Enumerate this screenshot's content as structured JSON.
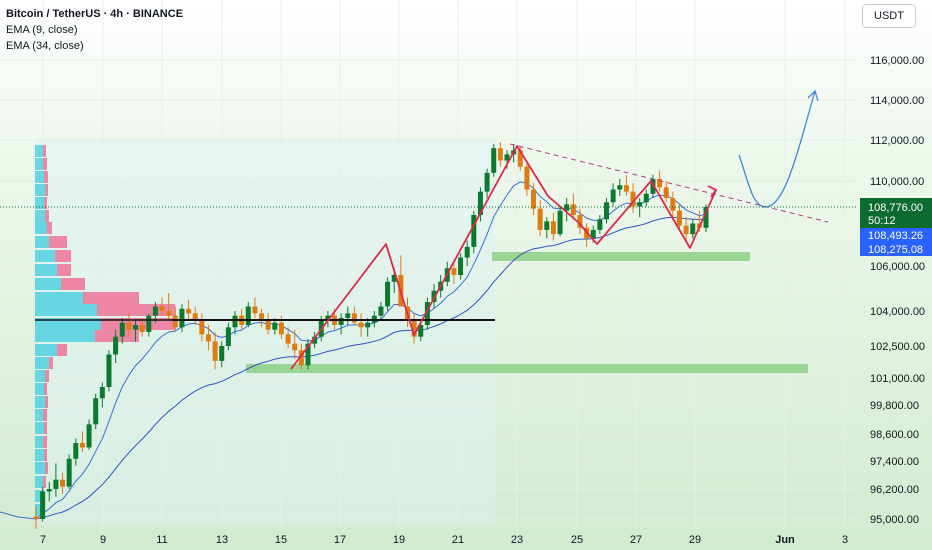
{
  "legend": {
    "title": "Bitcoin / TetherUS · 4h · BINANCE",
    "ema_fast": "EMA (9, close)",
    "ema_slow": "EMA (34, close)"
  },
  "currency": "USDT",
  "price_tags": {
    "last_price": "108,776.00",
    "countdown": "50:12",
    "ema_fast_value": "108,493.26",
    "ema_slow_value": "108,275.08"
  },
  "colors": {
    "background_top": "#ffffff",
    "background_bottom": "#d1ebd0",
    "candle_up": "#0c7a2e",
    "candle_down": "#e07b12",
    "ema_fast": "#3a6fd8",
    "ema_slow": "#2f55c8",
    "pattern": "#e0284a",
    "zone": "#8ccf86",
    "projection": "#3d86d6",
    "last_price_tag": "#0c6b2e",
    "ema_tag": "#2962ff",
    "volume_profile_up": "#4fd1e0",
    "volume_profile_down": "#f06a92"
  },
  "chart_data": {
    "type": "candlestick",
    "symbol": "BTC/USDT",
    "interval": "4h",
    "y_axis_labels": [
      "116,000.00",
      "114,000.00",
      "112,000.00",
      "110,000.00",
      "106,000.00",
      "104,000.00",
      "102,500.00",
      "101,000.00",
      "99,800.00",
      "98,600.00",
      "97,400.00",
      "96,200.00",
      "95,000.00"
    ],
    "y_axis_values": [
      116000,
      114000,
      112000,
      110000,
      106000,
      104000,
      102500,
      101000,
      99800,
      98600,
      97400,
      96200,
      95000
    ],
    "x_axis_labels": [
      "7",
      "9",
      "11",
      "13",
      "15",
      "17",
      "19",
      "21",
      "23",
      "25",
      "27",
      "29",
      "Jun",
      "3"
    ],
    "last_price": 108776,
    "ema_9": 108493.26,
    "ema_34": 108275.08,
    "support_zones": [
      {
        "from": "May 14",
        "to": "Jun 1",
        "price": 101300
      },
      {
        "from": "May 22",
        "to": "May 30",
        "price": 106300
      }
    ],
    "horizontal_level": 103600,
    "descending_trendline": {
      "from": [
        "May 22",
        111700
      ],
      "to": [
        "Jun 2",
        108000
      ]
    },
    "candles_ohlc_approx": [
      [
        95100,
        95500,
        94600,
        95000
      ],
      [
        95000,
        96300,
        94900,
        96100
      ],
      [
        96100,
        96500,
        95700,
        96200
      ],
      [
        96200,
        97300,
        95900,
        96600
      ],
      [
        96600,
        96900,
        96000,
        96300
      ],
      [
        96300,
        97700,
        96200,
        97500
      ],
      [
        97500,
        98400,
        97200,
        98200
      ],
      [
        98200,
        98700,
        97800,
        98000
      ],
      [
        98000,
        99200,
        97900,
        99000
      ],
      [
        99000,
        100300,
        98800,
        100100
      ],
      [
        100100,
        100800,
        99700,
        100600
      ],
      [
        100600,
        102300,
        100400,
        102100
      ],
      [
        102100,
        103200,
        101700,
        102900
      ],
      [
        102900,
        103700,
        102600,
        103500
      ],
      [
        103500,
        103900,
        102900,
        103200
      ],
      [
        103200,
        103600,
        102700,
        103400
      ],
      [
        103400,
        103700,
        102900,
        103100
      ],
      [
        103100,
        103900,
        102900,
        103800
      ],
      [
        103800,
        104400,
        103500,
        104200
      ],
      [
        104200,
        104600,
        103800,
        104000
      ],
      [
        104000,
        104800,
        103600,
        103800
      ],
      [
        103800,
        104200,
        103100,
        103300
      ],
      [
        103300,
        104300,
        103100,
        104100
      ],
      [
        104100,
        104500,
        103600,
        103900
      ],
      [
        103900,
        104200,
        103400,
        103600
      ],
      [
        103600,
        103900,
        102700,
        103000
      ],
      [
        103000,
        103400,
        102300,
        102700
      ],
      [
        102700,
        103100,
        101400,
        101800
      ],
      [
        101800,
        102700,
        101500,
        102500
      ],
      [
        102500,
        103500,
        102300,
        103300
      ],
      [
        103300,
        104000,
        103000,
        103800
      ],
      [
        103800,
        104100,
        103200,
        103400
      ],
      [
        103400,
        104400,
        103300,
        104200
      ],
      [
        104200,
        104600,
        103700,
        103900
      ],
      [
        103900,
        104100,
        103300,
        103600
      ],
      [
        103600,
        103900,
        103000,
        103200
      ],
      [
        103200,
        103700,
        103000,
        103500
      ],
      [
        103500,
        103800,
        102800,
        103000
      ],
      [
        103000,
        103300,
        102400,
        102600
      ],
      [
        102600,
        103200,
        101900,
        102300
      ],
      [
        102300,
        102600,
        101400,
        101600
      ],
      [
        101600,
        102800,
        101400,
        102600
      ],
      [
        102600,
        103100,
        102400,
        102900
      ],
      [
        102900,
        103800,
        102700,
        103600
      ],
      [
        103600,
        104000,
        103300,
        103800
      ],
      [
        103800,
        104100,
        103200,
        103400
      ],
      [
        103400,
        103900,
        103000,
        103700
      ],
      [
        103700,
        104200,
        103400,
        103900
      ],
      [
        103900,
        104200,
        103400,
        103500
      ],
      [
        103500,
        103900,
        102900,
        103300
      ],
      [
        103300,
        103700,
        102900,
        103500
      ],
      [
        103500,
        104000,
        103300,
        103800
      ],
      [
        103800,
        104400,
        103600,
        104200
      ],
      [
        104200,
        105500,
        104000,
        105300
      ],
      [
        105300,
        105900,
        104800,
        105600
      ],
      [
        105600,
        106500,
        105100,
        104200
      ],
      [
        104200,
        104600,
        103300,
        103600
      ],
      [
        103600,
        103900,
        102600,
        102900
      ],
      [
        102900,
        103600,
        102700,
        103400
      ],
      [
        103400,
        104600,
        103200,
        104400
      ],
      [
        104400,
        105200,
        104100,
        104900
      ],
      [
        104900,
        105600,
        104600,
        105300
      ],
      [
        105300,
        106200,
        105100,
        105900
      ],
      [
        105900,
        106300,
        105200,
        105600
      ],
      [
        105600,
        106600,
        105400,
        106400
      ],
      [
        106400,
        107200,
        106000,
        106900
      ],
      [
        106900,
        108600,
        106600,
        108400
      ],
      [
        108400,
        109700,
        108100,
        109500
      ],
      [
        109500,
        110600,
        109200,
        110400
      ],
      [
        110400,
        111800,
        110200,
        111600
      ],
      [
        111600,
        111900,
        110700,
        111000
      ],
      [
        111000,
        111500,
        110600,
        111300
      ],
      [
        111300,
        111800,
        110900,
        111500
      ],
      [
        111500,
        111700,
        110500,
        110700
      ],
      [
        110700,
        111000,
        109300,
        109600
      ],
      [
        109600,
        109900,
        108400,
        108700
      ],
      [
        108700,
        109100,
        107400,
        107700
      ],
      [
        107700,
        108300,
        107300,
        108100
      ],
      [
        108100,
        108500,
        107200,
        107500
      ],
      [
        107500,
        108800,
        107400,
        108600
      ],
      [
        108600,
        109200,
        108100,
        108900
      ],
      [
        108900,
        109400,
        108200,
        108400
      ],
      [
        108400,
        108700,
        107500,
        107800
      ],
      [
        107800,
        108000,
        106900,
        107300
      ],
      [
        107300,
        107900,
        107100,
        107700
      ],
      [
        107700,
        108400,
        107500,
        108200
      ],
      [
        108200,
        109200,
        108000,
        109000
      ],
      [
        109000,
        109900,
        108800,
        109600
      ],
      [
        109600,
        110100,
        109300,
        109800
      ],
      [
        109800,
        110300,
        109300,
        109500
      ],
      [
        109500,
        109900,
        108500,
        108800
      ],
      [
        108800,
        109200,
        108300,
        109000
      ],
      [
        109000,
        109600,
        108800,
        109400
      ],
      [
        109400,
        110300,
        109200,
        110100
      ],
      [
        110100,
        110500,
        109500,
        109700
      ],
      [
        109700,
        110000,
        109000,
        109200
      ],
      [
        109200,
        109500,
        108300,
        108600
      ],
      [
        108600,
        108900,
        107700,
        107900
      ],
      [
        107900,
        108300,
        107200,
        107500
      ],
      [
        107500,
        108200,
        107300,
        108000
      ],
      [
        108000,
        108600,
        107600,
        107800
      ],
      [
        107800,
        108900,
        107600,
        108776
      ]
    ]
  }
}
